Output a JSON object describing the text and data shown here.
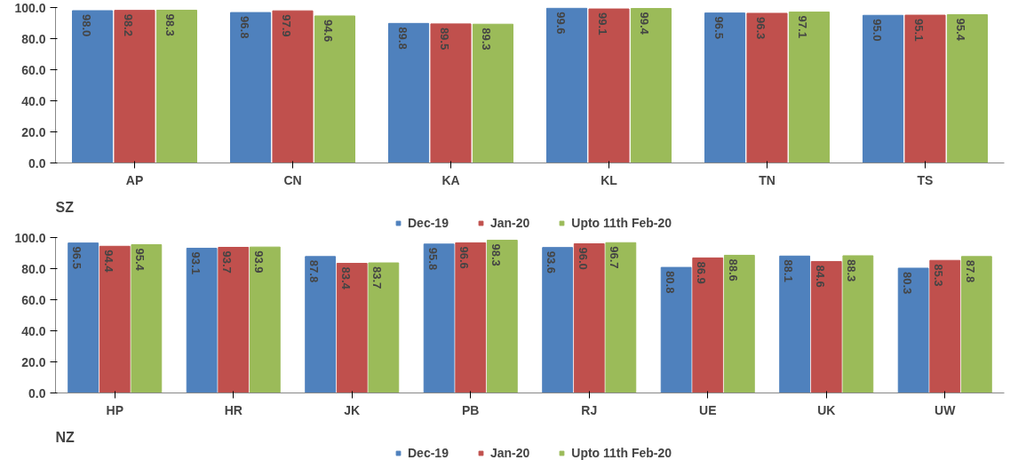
{
  "chart_data": [
    {
      "type": "bar",
      "title": "SZ",
      "categories": [
        "AP",
        "CN",
        "KA",
        "KL",
        "TN",
        "TS"
      ],
      "series": [
        {
          "name": "Dec-19",
          "color": "#4f81bd",
          "values": [
            98.0,
            96.8,
            89.8,
            99.6,
            96.5,
            95.0
          ],
          "value_labels": [
            "98.0",
            "96.8",
            "89.8",
            "99.6",
            "96.5",
            "95.0"
          ]
        },
        {
          "name": "Jan-20",
          "color": "#c0504d",
          "values": [
            98.2,
            97.9,
            89.5,
            99.1,
            96.3,
            95.1
          ],
          "value_labels": [
            "98.2",
            "97.9",
            "89.5",
            "99.1",
            "96.3",
            "95.1"
          ]
        },
        {
          "name": "Upto 11th Feb-20",
          "color": "#9bbb59",
          "values": [
            98.3,
            94.6,
            89.3,
            99.4,
            97.1,
            95.4
          ],
          "value_labels": [
            "98.3",
            "94.6",
            "89.3",
            "99.4",
            "97.1",
            "95.4"
          ]
        }
      ],
      "ylim": [
        0,
        100
      ],
      "yticks": [
        {
          "value": 0,
          "label": "0.0"
        },
        {
          "value": 20,
          "label": "20.0"
        },
        {
          "value": 40,
          "label": "40.0"
        },
        {
          "value": 60,
          "label": "60.0"
        },
        {
          "value": 80,
          "label": "80.0"
        },
        {
          "value": 100,
          "label": "100.0"
        }
      ],
      "legend": "bottom"
    },
    {
      "type": "bar",
      "title": "NZ",
      "categories": [
        "HP",
        "HR",
        "JK",
        "PB",
        "RJ",
        "UE",
        "UK",
        "UW"
      ],
      "series": [
        {
          "name": "Dec-19",
          "color": "#4f81bd",
          "values": [
            96.5,
            93.1,
            87.8,
            95.8,
            93.6,
            80.8,
            88.1,
            80.3
          ],
          "value_labels": [
            "96.5",
            "93.1",
            "87.8",
            "95.8",
            "93.6",
            "80.8",
            "88.1",
            "80.3"
          ]
        },
        {
          "name": "Jan-20",
          "color": "#c0504d",
          "values": [
            94.4,
            93.7,
            83.4,
            96.6,
            96.0,
            86.9,
            84.6,
            85.3
          ],
          "value_labels": [
            "94.4",
            "93.7",
            "83.4",
            "96.6",
            "96.0",
            "86.9",
            "84.6",
            "85.3"
          ]
        },
        {
          "name": "Upto 11th Feb-20",
          "color": "#9bbb59",
          "values": [
            95.4,
            93.9,
            83.7,
            98.3,
            96.7,
            88.6,
            88.3,
            87.8
          ],
          "value_labels": [
            "95.4",
            "93.9",
            "83.7",
            "98.3",
            "96.7",
            "88.6",
            "88.3",
            "87.8"
          ]
        }
      ],
      "ylim": [
        0,
        100
      ],
      "yticks": [
        {
          "value": 0,
          "label": "0.0"
        },
        {
          "value": 20,
          "label": "20.0"
        },
        {
          "value": 40,
          "label": "40.0"
        },
        {
          "value": 60,
          "label": "60.0"
        },
        {
          "value": 80,
          "label": "80.0"
        },
        {
          "value": 100,
          "label": "100.0"
        }
      ],
      "legend": "bottom"
    }
  ]
}
